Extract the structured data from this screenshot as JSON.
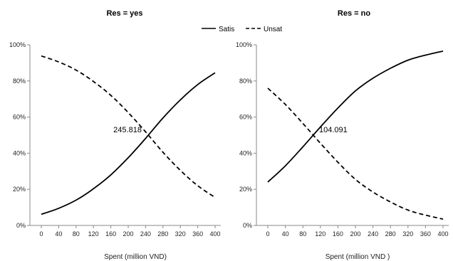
{
  "legend": {
    "satis": "Satis",
    "unsat": "Unsat"
  },
  "chart_data": [
    {
      "type": "line",
      "title": "Res = yes",
      "xlabel": "Spent (million VND)",
      "ylabel": "",
      "x": [
        0,
        40,
        80,
        120,
        160,
        200,
        240,
        280,
        320,
        360,
        400
      ],
      "x_ticks": [
        "0",
        "40",
        "80",
        "120",
        "160",
        "200",
        "240",
        "280",
        "320",
        "360",
        "400"
      ],
      "y_ticks": [
        "0%",
        "20%",
        "40%",
        "60%",
        "80%",
        "100%"
      ],
      "ylim": [
        0,
        100
      ],
      "series": [
        {
          "name": "Satis",
          "style": "solid",
          "values": [
            6.2,
            9.5,
            14,
            20.3,
            28,
            37.5,
            48.2,
            59.5,
            69.5,
            78,
            84.5
          ]
        },
        {
          "name": "Unsat",
          "style": "dashed",
          "values": [
            93.8,
            90.5,
            86,
            79.7,
            72,
            62.5,
            51.8,
            40.5,
            30.5,
            22,
            15.5
          ]
        }
      ],
      "annotation": {
        "text": "245.818",
        "x": 245.818,
        "y": 50
      }
    },
    {
      "type": "line",
      "title": "Res = no",
      "xlabel": "Spent (million VND )",
      "ylabel": "",
      "x": [
        0,
        40,
        80,
        120,
        160,
        200,
        240,
        280,
        320,
        360,
        400
      ],
      "x_ticks": [
        "0",
        "40",
        "80",
        "120",
        "160",
        "200",
        "240",
        "280",
        "320",
        "360",
        "400"
      ],
      "y_ticks": [
        "0%",
        "20%",
        "40%",
        "60%",
        "80%",
        "100%"
      ],
      "ylim": [
        0,
        100
      ],
      "series": [
        {
          "name": "Satis",
          "style": "solid",
          "values": [
            24,
            33,
            43.5,
            54.5,
            65,
            74.5,
            81.5,
            87,
            91.5,
            94.3,
            96.5
          ]
        },
        {
          "name": "Unsat",
          "style": "dashed",
          "values": [
            76,
            67,
            56.5,
            45.5,
            35,
            25.5,
            18.5,
            13,
            8.5,
            5.7,
            3.5
          ]
        }
      ],
      "annotation": {
        "text": "104.091",
        "x": 104.091,
        "y": 50
      }
    }
  ]
}
